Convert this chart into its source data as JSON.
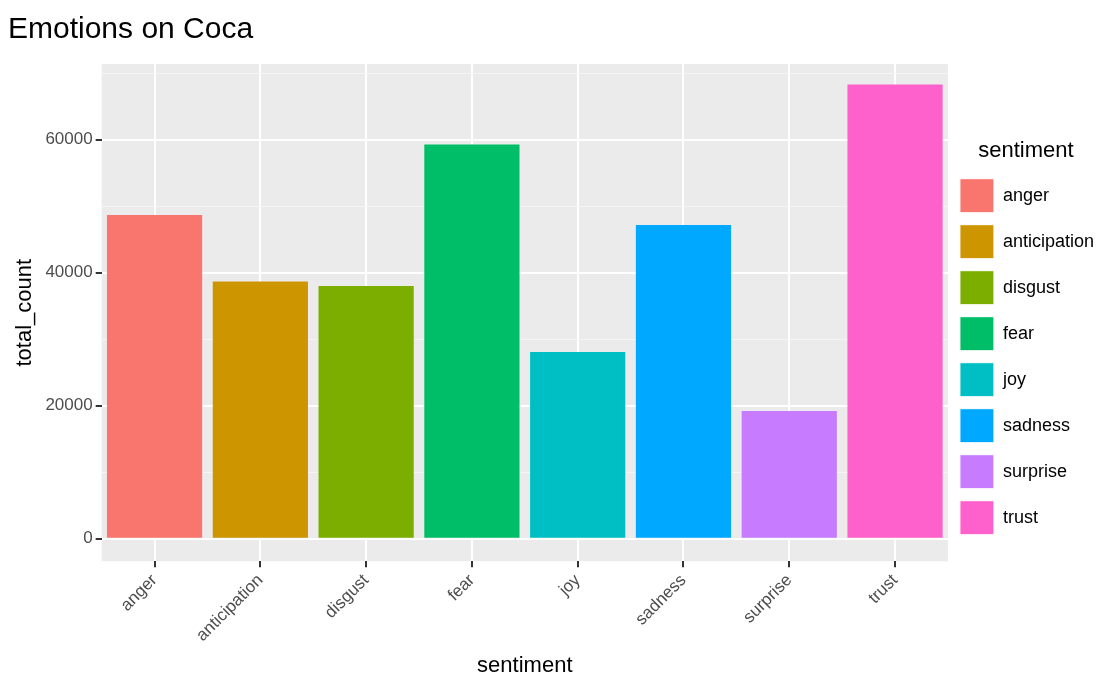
{
  "chart_data": {
    "type": "bar",
    "title": "Emotions on Coca",
    "xlabel": "sentiment",
    "ylabel": "total_count",
    "legend_title": "sentiment",
    "categories": [
      "anger",
      "anticipation",
      "disgust",
      "fear",
      "joy",
      "sadness",
      "surprise",
      "trust"
    ],
    "series": [
      {
        "name": "anger",
        "color": "#f8766d",
        "values": [
          48700,
          null,
          null,
          null,
          null,
          null,
          null,
          null
        ]
      },
      {
        "name": "anticipation",
        "color": "#cd9600",
        "values": [
          null,
          38700,
          null,
          null,
          null,
          null,
          null,
          null
        ]
      },
      {
        "name": "disgust",
        "color": "#7cae00",
        "values": [
          null,
          null,
          38000,
          null,
          null,
          null,
          null,
          null
        ]
      },
      {
        "name": "fear",
        "color": "#00be67",
        "values": [
          null,
          null,
          null,
          59300,
          null,
          null,
          null,
          null
        ]
      },
      {
        "name": "joy",
        "color": "#00bfc4",
        "values": [
          null,
          null,
          null,
          null,
          28100,
          null,
          null,
          null
        ]
      },
      {
        "name": "sadness",
        "color": "#00a9ff",
        "values": [
          null,
          null,
          null,
          null,
          null,
          47200,
          null,
          null
        ]
      },
      {
        "name": "surprise",
        "color": "#c77cff",
        "values": [
          null,
          null,
          null,
          null,
          null,
          null,
          19200,
          null
        ]
      },
      {
        "name": "trust",
        "color": "#ff61cc",
        "values": [
          null,
          null,
          null,
          null,
          null,
          null,
          null,
          68300
        ]
      }
    ],
    "ylim": [
      -3400,
      71400
    ],
    "yticks": [
      0,
      {
        "value": 10000,
        "label": null
      },
      20000,
      {
        "value": 30000,
        "label": null
      },
      40000,
      {
        "value": 50000,
        "label": null
      },
      60000,
      {
        "value": 70000,
        "label": null
      }
    ],
    "grid": true,
    "legend": "right"
  }
}
